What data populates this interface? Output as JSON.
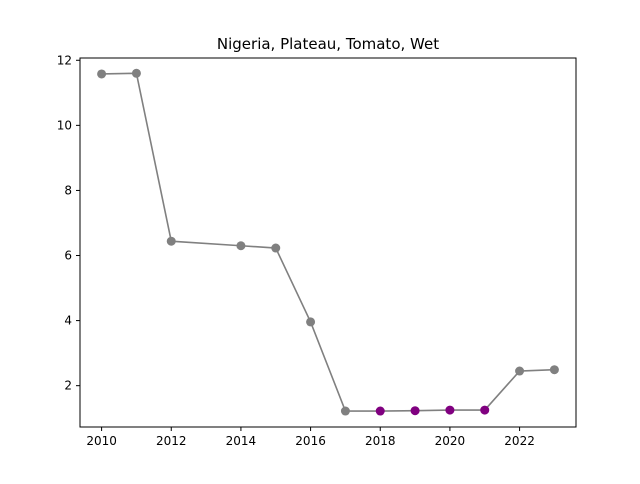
{
  "chart_data": {
    "type": "line",
    "title": "Nigeria, Plateau, Tomato, Wet",
    "xlabel": "",
    "ylabel": "",
    "xlim": [
      2009.38,
      2023.62
    ],
    "ylim": [
      0.73,
      12.07
    ],
    "xticks": [
      2010,
      2012,
      2014,
      2016,
      2018,
      2020,
      2022
    ],
    "yticks": [
      2,
      4,
      6,
      8,
      10,
      12
    ],
    "grid": false,
    "line_color": "#808080",
    "points": [
      {
        "x": 2010,
        "y": 11.58,
        "color": "#808080"
      },
      {
        "x": 2011,
        "y": 11.6,
        "color": "#808080"
      },
      {
        "x": 2012,
        "y": 6.44,
        "color": "#808080"
      },
      {
        "x": 2014,
        "y": 6.3,
        "color": "#808080"
      },
      {
        "x": 2015,
        "y": 6.23,
        "color": "#808080"
      },
      {
        "x": 2016,
        "y": 3.96,
        "color": "#808080"
      },
      {
        "x": 2017,
        "y": 1.22,
        "color": "#808080"
      },
      {
        "x": 2018,
        "y": 1.22,
        "color": "#800080"
      },
      {
        "x": 2019,
        "y": 1.23,
        "color": "#800080"
      },
      {
        "x": 2020,
        "y": 1.25,
        "color": "#800080"
      },
      {
        "x": 2021,
        "y": 1.25,
        "color": "#800080"
      },
      {
        "x": 2022,
        "y": 2.45,
        "color": "#808080"
      },
      {
        "x": 2023,
        "y": 2.49,
        "color": "#808080"
      }
    ]
  }
}
